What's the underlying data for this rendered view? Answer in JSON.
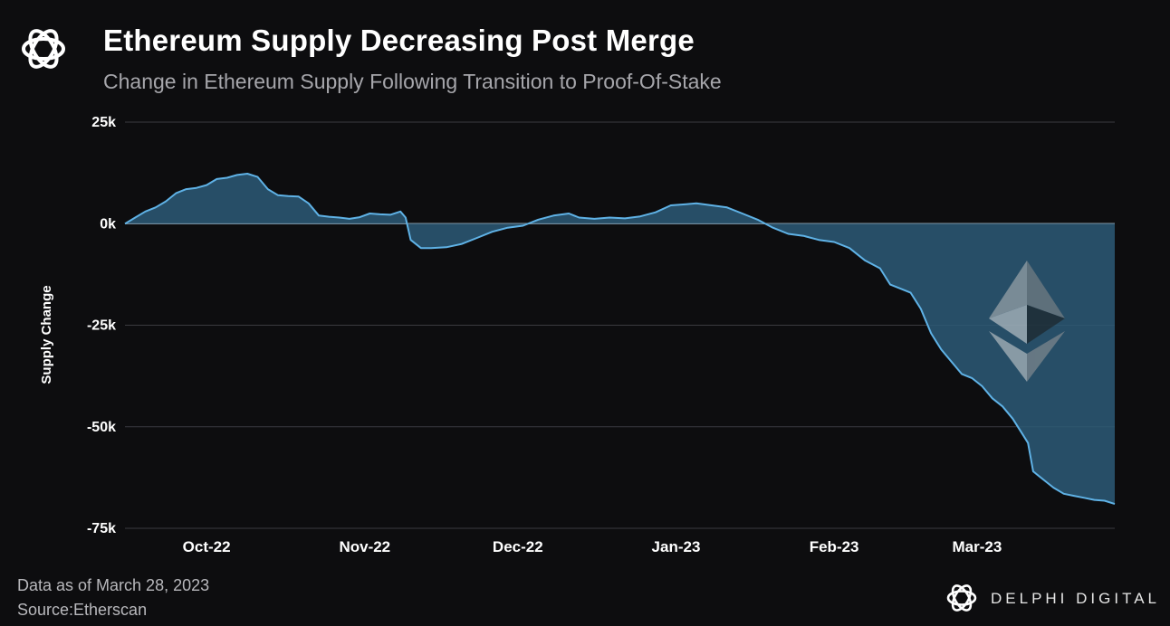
{
  "header": {
    "title": "Ethereum Supply Decreasing Post Merge",
    "subtitle": "Change in Ethereum Supply Following Transition to Proof-Of-Stake",
    "logo_icon": "delphi-knot-logo-icon"
  },
  "footer": {
    "data_note": "Data as of March 28, 2023",
    "source": "Source:Etherscan",
    "brand": "DELPHI DIGITAL",
    "brand_icon": "delphi-knot-logo-icon"
  },
  "colors": {
    "background": "#0d0d0f",
    "line": "#5fb2e6",
    "area_fill": "#2d5b77",
    "grid": "#3a3a40",
    "zero_line": "#8a9aa6"
  },
  "chart_data": {
    "type": "area",
    "title": "Ethereum Supply Decreasing Post Merge",
    "ylabel": "Supply Change",
    "xlabel": "",
    "ylim": [
      -75000,
      25000
    ],
    "yticks": [
      25000,
      0,
      -25000,
      -50000,
      -75000
    ],
    "ytick_labels": [
      "25k",
      "0k",
      "-25k",
      "-50k",
      "-75k"
    ],
    "x_range": [
      "2022-09-15",
      "2023-03-28"
    ],
    "xticks": [
      "2022-10-01",
      "2022-11-01",
      "2022-12-01",
      "2023-01-01",
      "2023-02-01",
      "2023-03-01"
    ],
    "xtick_labels": [
      "Oct-22",
      "Nov-22",
      "Dec-22",
      "Jan-23",
      "Feb-23",
      "Mar-23"
    ],
    "grid": true,
    "watermark_icon": "ethereum-diamond-icon",
    "series": [
      {
        "x": [
          "2022-09-15",
          "2022-09-17",
          "2022-09-19",
          "2022-09-21",
          "2022-09-23",
          "2022-09-25",
          "2022-09-27",
          "2022-09-29",
          "2022-10-01",
          "2022-10-03",
          "2022-10-05",
          "2022-10-07",
          "2022-10-09",
          "2022-10-11",
          "2022-10-13",
          "2022-10-15",
          "2022-10-17",
          "2022-10-19",
          "2022-10-21",
          "2022-10-23",
          "2022-10-25",
          "2022-10-27",
          "2022-10-29",
          "2022-10-31",
          "2022-11-02",
          "2022-11-04",
          "2022-11-06",
          "2022-11-08",
          "2022-11-09",
          "2022-11-10",
          "2022-11-12",
          "2022-11-14",
          "2022-11-17",
          "2022-11-20",
          "2022-11-23",
          "2022-11-26",
          "2022-11-29",
          "2022-12-02",
          "2022-12-05",
          "2022-12-08",
          "2022-12-11",
          "2022-12-13",
          "2022-12-16",
          "2022-12-19",
          "2022-12-22",
          "2022-12-25",
          "2022-12-28",
          "2022-12-31",
          "2023-01-03",
          "2023-01-05",
          "2023-01-08",
          "2023-01-11",
          "2023-01-14",
          "2023-01-17",
          "2023-01-20",
          "2023-01-23",
          "2023-01-26",
          "2023-01-29",
          "2023-02-01",
          "2023-02-04",
          "2023-02-07",
          "2023-02-10",
          "2023-02-12",
          "2023-02-14",
          "2023-02-16",
          "2023-02-18",
          "2023-02-20",
          "2023-02-22",
          "2023-02-24",
          "2023-02-26",
          "2023-02-28",
          "2023-03-02",
          "2023-03-04",
          "2023-03-06",
          "2023-03-08",
          "2023-03-10",
          "2023-03-11",
          "2023-03-12",
          "2023-03-14",
          "2023-03-16",
          "2023-03-18",
          "2023-03-20",
          "2023-03-22",
          "2023-03-24",
          "2023-03-26",
          "2023-03-28"
        ],
        "values": [
          0,
          1500,
          3000,
          4000,
          5500,
          7500,
          8500,
          8800,
          9500,
          11000,
          11300,
          12000,
          12300,
          11500,
          8500,
          7000,
          6800,
          6700,
          5000,
          2000,
          1700,
          1500,
          1200,
          1600,
          2500,
          2300,
          2200,
          3000,
          1500,
          -4000,
          -6000,
          -6000,
          -5800,
          -5000,
          -3500,
          -2000,
          -1000,
          -500,
          1000,
          2000,
          2500,
          1500,
          1200,
          1500,
          1300,
          1800,
          2800,
          4500,
          4800,
          5000,
          4500,
          4000,
          2500,
          1000,
          -1000,
          -2500,
          -3000,
          -4000,
          -4500,
          -6000,
          -9000,
          -11000,
          -15000,
          -16000,
          -17000,
          -21000,
          -27000,
          -31000,
          -34000,
          -37000,
          -38000,
          -40000,
          -43000,
          -45000,
          -48000,
          -52000,
          -54000,
          -61000,
          -63000,
          -65000,
          -66500,
          -67000,
          -67500,
          -68000,
          -68200,
          -69000
        ]
      }
    ]
  }
}
